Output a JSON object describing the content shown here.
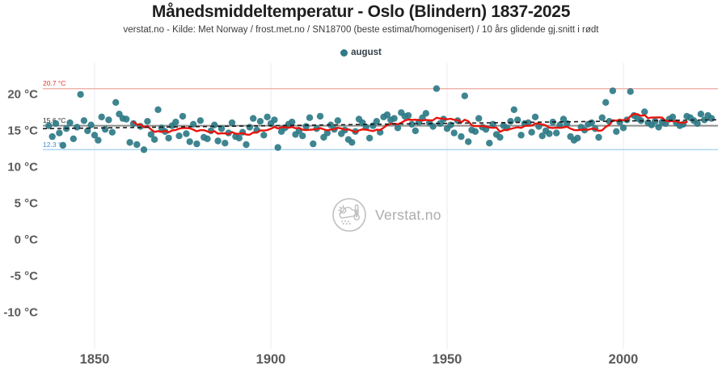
{
  "header": {
    "title": "Månedsmiddeltemperatur - Oslo (Blindern) 1837-2025",
    "subtitle": "verstat.no - Kilde: Met Norway / frost.met.no / SN18700 (beste estimat/homogenisert) / 10 års glidende gj.snitt i rødt"
  },
  "legend": {
    "label": "august",
    "marker_color": "#2e7b87"
  },
  "watermark": {
    "text": "Verstat.no",
    "icon": "weather-logo-icon",
    "color": "#9e9e9e"
  },
  "colors": {
    "dot": "#2e7b87",
    "moving_average": "#e8150d",
    "max_line": "#f2b3ae",
    "max_label": "#e3342c",
    "mean_line": "#8c8c8c",
    "mean_label": "#222222",
    "min_line": "#aed6f2",
    "min_label": "#3e8ed0",
    "trend_line": "#1a1a1a",
    "gridline": "#ebebeb",
    "tick_label": "#5a5a5a"
  },
  "chart_data": {
    "type": "scatter",
    "title": "Månedsmiddeltemperatur - Oslo (Blindern) 1837-2025",
    "xlabel": "",
    "ylabel": "",
    "xlim": [
      1836,
      2026.5
    ],
    "ylim": [
      -12.5,
      21.5
    ],
    "grid": "vertical-only",
    "legend_position": "top-center",
    "x_ticks": [
      1850,
      1900,
      1950,
      2000
    ],
    "y_ticks": [
      {
        "value": 20,
        "label": "20 °C"
      },
      {
        "value": 15,
        "label": "15 °C"
      },
      {
        "value": 10,
        "label": "10 °C"
      },
      {
        "value": 5,
        "label": "5 °C"
      },
      {
        "value": 0,
        "label": "0 °C"
      },
      {
        "value": -5,
        "label": "-5 °C"
      },
      {
        "value": -10,
        "label": "-10 °C"
      }
    ],
    "series": [
      {
        "name": "august",
        "start_year": 1837,
        "end_year": 2025,
        "values": [
          15.6,
          14.1,
          15.9,
          14.6,
          12.9,
          15.2,
          16.0,
          13.8,
          15.4,
          19.9,
          16.3,
          14.9,
          15.7,
          14.3,
          13.6,
          16.8,
          15.1,
          16.4,
          14.7,
          18.8,
          17.2,
          16.6,
          16.5,
          13.3,
          15.9,
          13.0,
          15.5,
          12.3,
          16.2,
          14.4,
          13.7,
          17.8,
          15.3,
          14.8,
          13.9,
          15.6,
          16.1,
          14.2,
          16.9,
          14.5,
          13.4,
          15.8,
          13.1,
          16.3,
          14.0,
          13.8,
          14.9,
          15.7,
          13.5,
          15.2,
          13.2,
          14.6,
          16.0,
          14.1,
          13.9,
          14.7,
          13.0,
          15.4,
          16.6,
          15.0,
          16.2,
          14.3,
          16.8,
          15.9,
          16.4,
          12.6,
          14.8,
          15.3,
          15.8,
          16.1,
          14.4,
          14.9,
          14.2,
          15.5,
          16.7,
          13.1,
          15.2,
          16.9,
          14.0,
          14.6,
          15.7,
          15.1,
          16.3,
          14.5,
          15.0,
          13.7,
          13.3,
          14.8,
          16.5,
          16.0,
          15.4,
          13.9,
          15.6,
          16.2,
          14.7,
          16.8,
          17.1,
          16.4,
          16.6,
          15.3,
          17.4,
          16.9,
          17.0,
          15.8,
          14.9,
          16.1,
          16.7,
          17.3,
          16.0,
          15.5,
          20.7,
          15.9,
          16.5,
          15.2,
          15.7,
          14.6,
          16.3,
          14.1,
          19.7,
          13.4,
          15.0,
          14.8,
          16.6,
          15.4,
          15.1,
          13.2,
          15.8,
          14.4,
          14.0,
          15.6,
          15.3,
          16.2,
          17.8,
          16.4,
          14.3,
          15.9,
          16.0,
          14.7,
          16.8,
          15.5,
          14.2,
          14.9,
          14.5,
          16.1,
          14.6,
          15.7,
          16.5,
          15.9,
          14.1,
          13.6,
          13.9,
          15.4,
          15.0,
          15.8,
          16.0,
          15.2,
          14.0,
          16.7,
          18.8,
          16.2,
          20.4,
          14.8,
          16.1,
          15.3,
          16.4,
          20.3,
          17.0,
          16.6,
          16.3,
          17.5,
          16.0,
          15.7,
          16.2,
          15.4,
          16.1,
          15.9,
          16.5,
          16.8,
          16.0,
          15.6,
          15.8,
          16.9,
          16.7,
          16.3,
          15.9,
          17.2,
          16.4,
          17.0,
          16.6
        ]
      }
    ],
    "moving_average": {
      "window_years": 10,
      "color": "#e8150d",
      "draw_from_year": 1861,
      "draw_to_year": 2018,
      "note": "10 års glidende gj.snitt i rødt"
    },
    "reference_lines": [
      {
        "id": "max",
        "label": "20.7 °C",
        "value": 20.7,
        "line_color": "#f2b3ae",
        "label_color": "#e3342c",
        "width": 1.5
      },
      {
        "id": "mean",
        "label": "15.6 °C",
        "value": 15.6,
        "line_color": "#8c8c8c",
        "label_color": "#222222",
        "width": 2
      },
      {
        "id": "min",
        "label": "12.3 °C",
        "value": 12.3,
        "line_color": "#aed6f2",
        "label_color": "#3e8ed0",
        "width": 1.5
      }
    ],
    "trend_line": {
      "style": "dashed",
      "color": "#1a1a1a",
      "start_year": 1837,
      "start_value": 15.2,
      "end_year": 2025,
      "end_value": 16.4
    }
  }
}
